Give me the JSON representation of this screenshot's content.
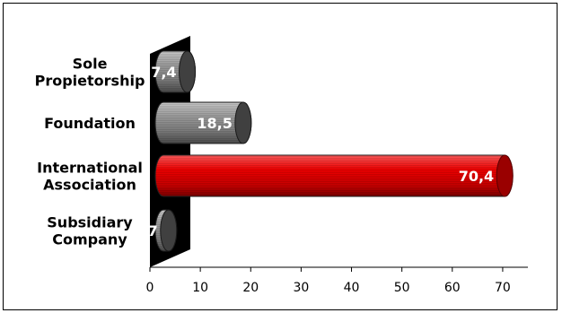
{
  "chart_data": {
    "type": "bar",
    "orientation": "horizontal",
    "style": "3d-cylinder",
    "categories": [
      [
        "Sole",
        "Propietorship"
      ],
      [
        "Foundation"
      ],
      [
        "International",
        "Association"
      ],
      [
        "Subsidiary",
        "Company"
      ]
    ],
    "values": [
      7.4,
      18.5,
      70.4,
      3.7
    ],
    "value_labels": [
      "7,4",
      "18,5",
      "70,4",
      "3,7"
    ],
    "bar_colors": [
      "#8c8c8c",
      "#8c8c8c",
      "#e00000",
      "#8c8c8c"
    ],
    "x_ticks": [
      0,
      10,
      20,
      30,
      40,
      50,
      60,
      70
    ],
    "xlim": [
      0,
      75
    ],
    "title": "",
    "xlabel": "",
    "ylabel": "",
    "grid": false,
    "legend": "none"
  }
}
